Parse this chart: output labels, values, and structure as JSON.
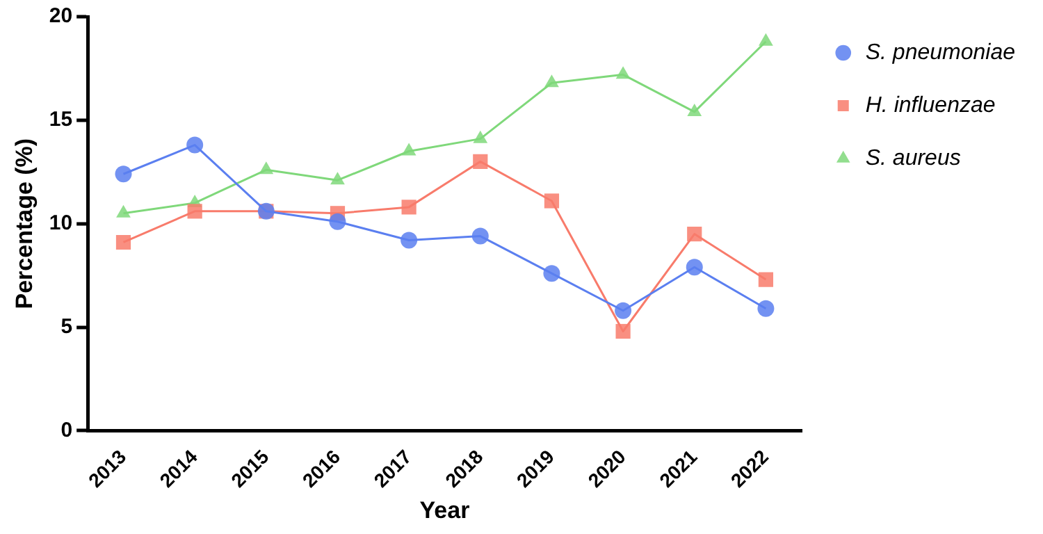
{
  "chart_data": {
    "type": "line",
    "xlabel": "Year",
    "ylabel": "Percentage (%)",
    "categories": [
      "2013",
      "2014",
      "2015",
      "2016",
      "2017",
      "2018",
      "2019",
      "2020",
      "2021",
      "2022"
    ],
    "series": [
      {
        "name": "S. pneumoniae",
        "color": "#5b7ff0",
        "marker": "circle",
        "values": [
          12.4,
          13.8,
          10.6,
          10.1,
          9.2,
          9.4,
          7.6,
          5.8,
          7.9,
          5.9
        ]
      },
      {
        "name": "H. influenzae",
        "color": "#f87b6b",
        "marker": "square",
        "values": [
          9.1,
          10.6,
          10.6,
          10.5,
          10.8,
          13.0,
          11.1,
          4.8,
          9.5,
          7.3
        ]
      },
      {
        "name": "S. aureus",
        "color": "#7fd87a",
        "marker": "triangle",
        "values": [
          10.5,
          11.0,
          12.6,
          12.1,
          13.5,
          14.1,
          16.8,
          17.2,
          15.4,
          18.8
        ]
      }
    ],
    "ylim": [
      0,
      20
    ],
    "yticks": [
      0,
      5,
      10,
      15,
      20
    ],
    "grid": false,
    "legend": "right",
    "line_style": "solid"
  }
}
